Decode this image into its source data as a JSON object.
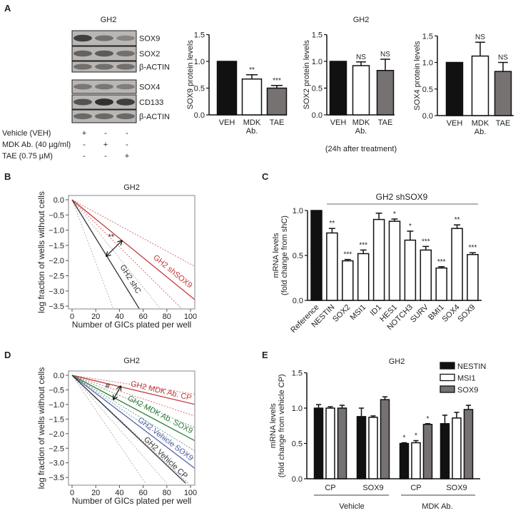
{
  "panels": {
    "a": "A",
    "b": "B",
    "c": "C",
    "d": "D",
    "e": "E"
  },
  "colors": {
    "black": "#111111",
    "white": "#ffffff",
    "gray": "#777272",
    "red": "#c0393b",
    "green": "#2e7d3c",
    "blue": "#5566a8",
    "dark": "#333333"
  },
  "blot": {
    "title": "GH2",
    "rows": [
      "SOX9",
      "SOX2",
      "β-ACTIN",
      "SOX4",
      "CD133",
      "β-ACTIN"
    ],
    "treatments": [
      {
        "label": "Vehicle (VEH)",
        "signs": [
          "+",
          "-",
          "-"
        ]
      },
      {
        "label": "MDK Ab. (40 µg/ml)",
        "signs": [
          "-",
          "+",
          "-"
        ]
      },
      {
        "label": "TAE (0.75 µM)",
        "signs": [
          "-",
          "-",
          "+"
        ]
      }
    ]
  },
  "a_title": "GH2",
  "a_note": "(24h after treatment)",
  "chart_data": [
    {
      "id": "a1",
      "type": "bar",
      "ylabel": "SOX9 protein levels",
      "ylim": [
        0,
        1.5
      ],
      "yticks": [
        "0.0",
        "0.5",
        "1.0",
        "1.5"
      ],
      "categories": [
        [
          "VEH"
        ],
        [
          "MDK",
          "Ab."
        ],
        [
          "TAE"
        ]
      ],
      "values": [
        1.0,
        0.67,
        0.5
      ],
      "errors": [
        0,
        0.08,
        0.05
      ],
      "annotations": [
        "",
        "**",
        "***"
      ],
      "fills": [
        "black",
        "white",
        "gray"
      ]
    },
    {
      "id": "a2",
      "type": "bar",
      "ylabel": "SOX2 protein levels",
      "ylim": [
        0,
        1.5
      ],
      "yticks": [
        "0.0",
        "0.5",
        "1.0",
        "1.5"
      ],
      "categories": [
        [
          "VEH"
        ],
        [
          "MDK",
          "Ab."
        ],
        [
          "TAE"
        ]
      ],
      "values": [
        1.0,
        0.92,
        0.83
      ],
      "errors": [
        0,
        0.07,
        0.21
      ],
      "annotations": [
        "",
        "NS",
        "NS"
      ],
      "fills": [
        "black",
        "white",
        "gray"
      ]
    },
    {
      "id": "a3",
      "type": "bar",
      "ylabel": "SOX4 protein levels",
      "ylim": [
        0,
        1.5
      ],
      "yticks": [
        "0.0",
        "0.5",
        "1.0",
        "1.5"
      ],
      "categories": [
        [
          "VEH"
        ],
        [
          "MDK",
          "Ab."
        ],
        [
          "TAE"
        ]
      ],
      "values": [
        1.0,
        1.12,
        0.83
      ],
      "errors": [
        0,
        0.26,
        0.17
      ],
      "annotations": [
        "",
        "NS",
        "NS"
      ],
      "fills": [
        "black",
        "white",
        "gray"
      ]
    },
    {
      "id": "b",
      "type": "line",
      "title": "GH2",
      "xlabel": "Number of GICs plated per well",
      "ylabel": "log fraction of wells without cells",
      "xlim": [
        -3,
        104
      ],
      "ylim": [
        -3.6,
        0.1
      ],
      "xticks": [
        0,
        20,
        40,
        60,
        80,
        100
      ],
      "yticks": [
        "0.0",
        "-0.5",
        "-1.0",
        "-1.5",
        "-2.0",
        "-2.5",
        "-3.0",
        "-3.5"
      ],
      "series": [
        {
          "name": "GH2 shC",
          "color": "dark",
          "points": [
            [
              0,
              0
            ],
            [
              57,
              -3.6
            ]
          ],
          "ci": [
            [
              0,
              0,
              35,
              -3.6
            ],
            [
              0,
              0,
              75,
              -3.6
            ]
          ]
        },
        {
          "name": "GH2 shSOX9",
          "color": "red",
          "points": [
            [
              0,
              0
            ],
            [
              104,
              -3.3
            ]
          ],
          "ci": [
            [
              0,
              0,
              104,
              -2.2
            ],
            [
              0,
              0,
              93,
              -3.6
            ]
          ]
        }
      ],
      "annotation": "**"
    },
    {
      "id": "c",
      "type": "bar",
      "group_label": "GH2 shSOX9",
      "ylabel": [
        "mRNA levels",
        "(fold change from shC)"
      ],
      "ylim": [
        0,
        1.0
      ],
      "yticks": [
        "0.0",
        "0.5",
        "1.0"
      ],
      "categories": [
        "Reference",
        "NESTIN",
        "SOX2",
        "MSI1",
        "ID1",
        "HES1",
        "NOTCH3",
        "SURV",
        "BMI1",
        "SOX4",
        "SOX9"
      ],
      "values": [
        1.0,
        0.75,
        0.44,
        0.52,
        0.9,
        0.88,
        0.67,
        0.56,
        0.36,
        0.8,
        0.51
      ],
      "errors": [
        0,
        0.05,
        0.015,
        0.04,
        0.07,
        0.025,
        0.1,
        0.04,
        0.015,
        0.04,
        0.02
      ],
      "annotations": [
        "",
        "**",
        "***",
        "***",
        "",
        "*",
        "*",
        "***",
        "***",
        "**",
        "***"
      ]
    },
    {
      "id": "d",
      "type": "line",
      "title": "GH2",
      "xlabel": "Number of GICs plated per well",
      "ylabel": "log fraction of wells without cells",
      "xlim": [
        -3,
        104
      ],
      "ylim": [
        -3.7,
        0.15
      ],
      "xticks": [
        0,
        20,
        40,
        60,
        80,
        100
      ],
      "yticks": [
        "0.0",
        "-0.5",
        "-1.0",
        "-1.5",
        "-2.0",
        "-2.5",
        "-3.0",
        "-3.5"
      ],
      "series": [
        {
          "name": "GH2 MDK Ab. CP",
          "color": "red",
          "points": [
            [
              0,
              0
            ],
            [
              104,
              -1.0
            ]
          ],
          "ci": [
            [
              0,
              0,
              104,
              -0.65
            ],
            [
              0,
              0,
              104,
              -1.4
            ]
          ]
        },
        {
          "name": "GH2 MDK Ab. SOX9",
          "color": "green",
          "points": [
            [
              0,
              0
            ],
            [
              104,
              -2.25
            ]
          ],
          "ci": [
            [
              0,
              0,
              104,
              -1.8
            ],
            [
              0,
              0,
              104,
              -2.6
            ]
          ]
        },
        {
          "name": "GH2 Vehicle SOX9",
          "color": "blue",
          "points": [
            [
              0,
              0
            ],
            [
              104,
              -3.2
            ]
          ],
          "ci": [
            [
              0,
              0,
              104,
              -2.9
            ],
            [
              0,
              0,
              98,
              -3.7
            ]
          ]
        },
        {
          "name": "GH2 Vehicle CP",
          "color": "dark",
          "points": [
            [
              0,
              0
            ],
            [
              96,
              -3.7
            ]
          ],
          "ci": [
            [
              0,
              0,
              80,
              -3.7
            ],
            [
              0,
              0,
              62,
              -3.7
            ]
          ]
        }
      ],
      "annotation": "#"
    },
    {
      "id": "e",
      "type": "bar",
      "title": "GH2",
      "ylabel": [
        "mRNA levels",
        "(fold change from vehicle CP)"
      ],
      "ylim": [
        0,
        1.5
      ],
      "yticks": [
        "0.0",
        "0.5",
        "1.0",
        "1.5"
      ],
      "legend": "top-right",
      "categories": [
        "CP",
        "SOX9",
        "CP",
        "SOX9"
      ],
      "groups": [
        {
          "label": "Vehicle",
          "span": [
            0,
            1
          ]
        },
        {
          "label": "MDK Ab.",
          "span": [
            2,
            3
          ]
        }
      ],
      "series": [
        {
          "name": "NESTIN",
          "fill": "black",
          "values": [
            1.0,
            0.88,
            0.5,
            0.78
          ],
          "errors": [
            0.05,
            0.12,
            0.01,
            0.12
          ],
          "annotations": [
            "",
            "",
            "*",
            ""
          ]
        },
        {
          "name": "MSI1",
          "fill": "white",
          "values": [
            1.0,
            0.87,
            0.51,
            0.86
          ],
          "errors": [
            0.02,
            0.02,
            0.03,
            0.08
          ],
          "annotations": [
            "",
            "",
            "*",
            ""
          ]
        },
        {
          "name": "SOX9",
          "fill": "gray",
          "values": [
            1.0,
            1.12,
            0.77,
            0.98
          ],
          "errors": [
            0.04,
            0.04,
            0.01,
            0.06
          ],
          "annotations": [
            "",
            "",
            "*",
            ""
          ]
        }
      ]
    }
  ]
}
